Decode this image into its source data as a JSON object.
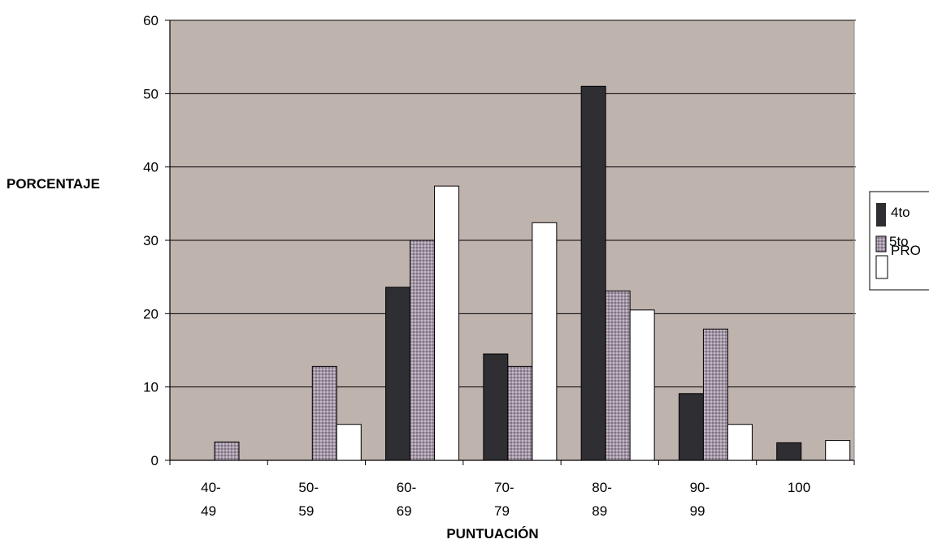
{
  "chart_data": {
    "type": "bar",
    "title": "",
    "xlabel": "PUNTUACIÓN",
    "ylabel": "PORCENTAJE",
    "ylim": [
      0,
      60
    ],
    "yticks": [
      0,
      10,
      20,
      30,
      40,
      50,
      60
    ],
    "grid": true,
    "legend_position": "right",
    "categories": [
      [
        "40-",
        "49"
      ],
      [
        "50-",
        "59"
      ],
      [
        "60-",
        "69"
      ],
      [
        "70-",
        "79"
      ],
      [
        "80-",
        "89"
      ],
      [
        "90-",
        "99"
      ],
      [
        "100"
      ]
    ],
    "series": [
      {
        "name": "4to",
        "values": [
          0,
          0,
          23.6,
          14.5,
          51,
          9.1,
          2.4
        ]
      },
      {
        "name": "5to",
        "values": [
          2.5,
          12.8,
          30,
          12.8,
          23.1,
          17.9,
          0
        ]
      },
      {
        "name": "PRO",
        "values": [
          0,
          4.9,
          37.4,
          32.4,
          20.5,
          4.9,
          2.7
        ]
      }
    ]
  },
  "colors": {
    "plot_background": "#bfb3ae",
    "gridline": "#000000",
    "series": [
      "#2e2e33",
      "#9a8f9e",
      "#ffffff"
    ]
  }
}
